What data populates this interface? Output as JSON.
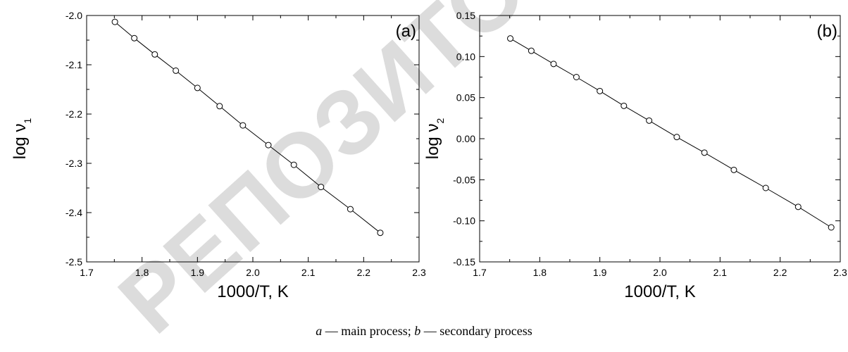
{
  "chart_data": [
    {
      "type": "line",
      "panel_label": "(a)",
      "xlabel": "1000/T, K",
      "ylabel": "log ν",
      "ylabel_subscript": "1",
      "xlim": [
        1.7,
        2.3
      ],
      "ylim": [
        -2.5,
        -2.0
      ],
      "x_ticks": [
        "1.7",
        "1.8",
        "1.9",
        "2.0",
        "2.1",
        "2.2",
        "2.3"
      ],
      "y_ticks": [
        "-2.0",
        "-2.1",
        "-2.2",
        "-2.3",
        "-2.4",
        "-2.5"
      ],
      "grid": false,
      "series": [
        {
          "marker": "open-circle",
          "color": "#000000",
          "x": [
            1.751,
            1.786,
            1.823,
            1.861,
            1.9,
            1.94,
            1.982,
            2.028,
            2.074,
            2.123,
            2.176,
            2.23
          ],
          "y": [
            -2.013,
            -2.046,
            -2.079,
            -2.112,
            -2.147,
            -2.184,
            -2.223,
            -2.263,
            -2.303,
            -2.348,
            -2.393,
            -2.441
          ]
        }
      ]
    },
    {
      "type": "line",
      "panel_label": "(b)",
      "xlabel": "1000/T, K",
      "ylabel": "log ν",
      "ylabel_subscript": "2",
      "xlim": [
        1.7,
        2.3
      ],
      "ylim": [
        -0.15,
        0.15
      ],
      "x_ticks": [
        "1.7",
        "1.8",
        "1.9",
        "2.0",
        "2.1",
        "2.2",
        "2.3"
      ],
      "y_ticks": [
        "0.15",
        "0.10",
        "0.05",
        "0.00",
        "-0.05",
        "-0.10",
        "-0.15"
      ],
      "grid": false,
      "series": [
        {
          "marker": "open-circle",
          "color": "#000000",
          "x": [
            1.751,
            1.786,
            1.823,
            1.861,
            1.9,
            1.94,
            1.982,
            2.028,
            2.074,
            2.123,
            2.176,
            2.23,
            2.285
          ],
          "y": [
            0.122,
            0.107,
            0.091,
            0.075,
            0.058,
            0.04,
            0.022,
            0.002,
            -0.017,
            -0.038,
            -0.06,
            -0.083,
            -0.108
          ]
        }
      ]
    }
  ],
  "caption": {
    "a_letter": "a",
    "a_text": " — main process; ",
    "b_letter": "b",
    "b_text": " — secondary process"
  },
  "watermark": {
    "text": "РЕПОЗИТОРИЙ",
    "color": "#d0d0d0"
  }
}
